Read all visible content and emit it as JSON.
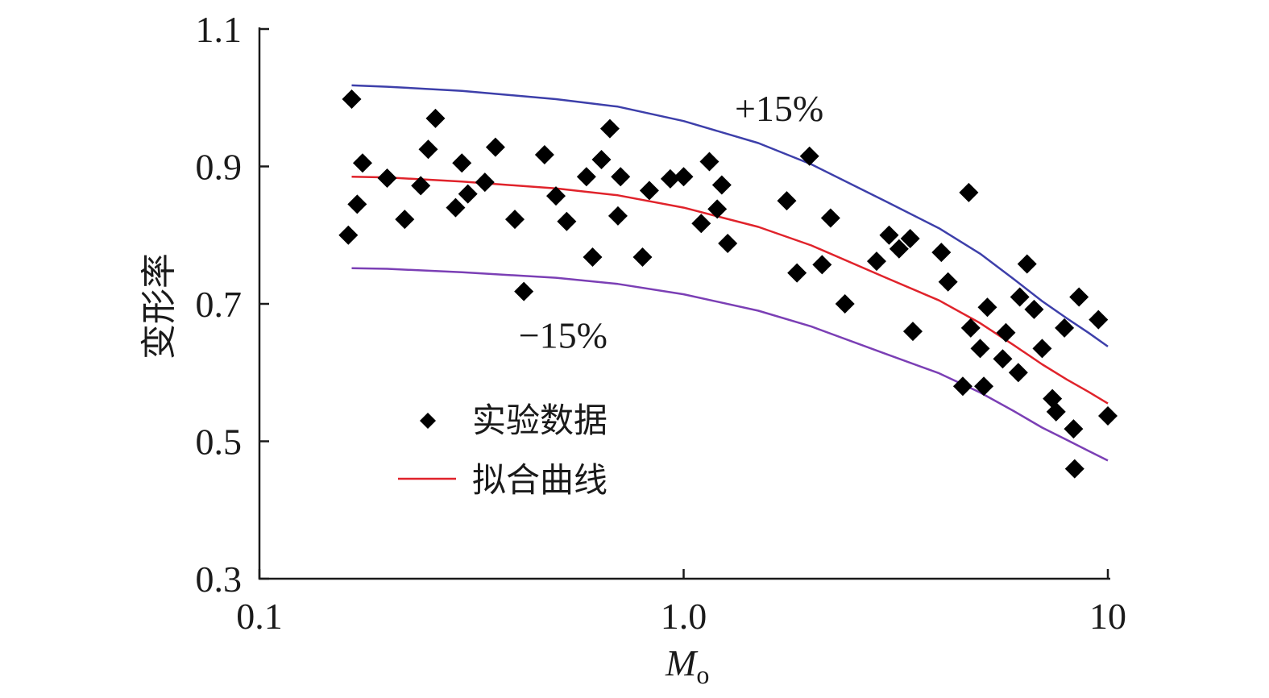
{
  "chart_data": {
    "type": "scatter",
    "xlabel": "M",
    "xlabel_sub": "o",
    "ylabel": "变形率",
    "x_scale": "log",
    "xlim": [
      0.1,
      10
    ],
    "ylim": [
      0.3,
      1.1
    ],
    "x_ticks": [
      0.1,
      1.0,
      10
    ],
    "x_tick_labels": [
      "0.1",
      "1.0",
      "10"
    ],
    "y_ticks": [
      0.3,
      0.5,
      0.7,
      0.9,
      1.1
    ],
    "y_tick_labels": [
      "0.3",
      "0.5",
      "0.7",
      "0.9",
      "1.1"
    ],
    "grid": false,
    "legend_position": "lower-left",
    "annotations": [
      {
        "text": "+15%",
        "x": 2.0,
        "y": 0.985
      },
      {
        "text": "−15%",
        "x": 0.6,
        "y": 0.655
      }
    ],
    "series": [
      {
        "name": "实验数据",
        "kind": "scatter",
        "marker": "diamond",
        "color": "#000000",
        "points": [
          [
            0.162,
            0.8
          ],
          [
            0.165,
            0.998
          ],
          [
            0.17,
            0.845
          ],
          [
            0.175,
            0.905
          ],
          [
            0.2,
            0.883
          ],
          [
            0.22,
            0.823
          ],
          [
            0.24,
            0.872
          ],
          [
            0.25,
            0.925
          ],
          [
            0.26,
            0.97
          ],
          [
            0.29,
            0.84
          ],
          [
            0.3,
            0.905
          ],
          [
            0.31,
            0.86
          ],
          [
            0.34,
            0.877
          ],
          [
            0.36,
            0.928
          ],
          [
            0.4,
            0.823
          ],
          [
            0.42,
            0.718
          ],
          [
            0.47,
            0.917
          ],
          [
            0.5,
            0.857
          ],
          [
            0.53,
            0.82
          ],
          [
            0.59,
            0.885
          ],
          [
            0.61,
            0.768
          ],
          [
            0.64,
            0.91
          ],
          [
            0.67,
            0.955
          ],
          [
            0.7,
            0.828
          ],
          [
            0.71,
            0.885
          ],
          [
            0.8,
            0.768
          ],
          [
            0.83,
            0.865
          ],
          [
            0.93,
            0.882
          ],
          [
            1.0,
            0.885
          ],
          [
            1.1,
            0.817
          ],
          [
            1.15,
            0.907
          ],
          [
            1.2,
            0.838
          ],
          [
            1.23,
            0.873
          ],
          [
            1.27,
            0.788
          ],
          [
            1.75,
            0.85
          ],
          [
            1.85,
            0.745
          ],
          [
            1.98,
            0.915
          ],
          [
            2.12,
            0.757
          ],
          [
            2.22,
            0.825
          ],
          [
            2.4,
            0.7
          ],
          [
            2.85,
            0.762
          ],
          [
            3.05,
            0.8
          ],
          [
            3.22,
            0.78
          ],
          [
            3.42,
            0.795
          ],
          [
            3.47,
            0.66
          ],
          [
            4.05,
            0.775
          ],
          [
            4.2,
            0.732
          ],
          [
            4.55,
            0.58
          ],
          [
            4.7,
            0.862
          ],
          [
            4.75,
            0.665
          ],
          [
            5.0,
            0.635
          ],
          [
            5.1,
            0.58
          ],
          [
            5.2,
            0.695
          ],
          [
            5.65,
            0.62
          ],
          [
            5.75,
            0.658
          ],
          [
            6.15,
            0.6
          ],
          [
            6.2,
            0.71
          ],
          [
            6.45,
            0.758
          ],
          [
            6.7,
            0.692
          ],
          [
            7.0,
            0.635
          ],
          [
            7.4,
            0.562
          ],
          [
            7.55,
            0.543
          ],
          [
            7.9,
            0.665
          ],
          [
            8.3,
            0.518
          ],
          [
            8.35,
            0.46
          ],
          [
            8.55,
            0.71
          ],
          [
            9.5,
            0.677
          ],
          [
            10.0,
            0.537
          ]
        ]
      },
      {
        "name": "拟合曲线",
        "kind": "line",
        "color": "#e0232b",
        "points": [
          [
            0.165,
            0.885
          ],
          [
            0.2,
            0.884
          ],
          [
            0.3,
            0.878
          ],
          [
            0.5,
            0.868
          ],
          [
            0.7,
            0.858
          ],
          [
            1.0,
            0.84
          ],
          [
            1.5,
            0.812
          ],
          [
            2.0,
            0.785
          ],
          [
            3.0,
            0.738
          ],
          [
            4.0,
            0.705
          ],
          [
            5.0,
            0.672
          ],
          [
            6.0,
            0.64
          ],
          [
            7.0,
            0.612
          ],
          [
            8.0,
            0.59
          ],
          [
            9.0,
            0.572
          ],
          [
            10.0,
            0.555
          ]
        ]
      },
      {
        "kind": "line",
        "color": "#3d3faa",
        "points": [
          [
            0.165,
            1.018
          ],
          [
            0.2,
            1.016
          ],
          [
            0.3,
            1.01
          ],
          [
            0.5,
            0.998
          ],
          [
            0.7,
            0.987
          ],
          [
            1.0,
            0.966
          ],
          [
            1.5,
            0.934
          ],
          [
            2.0,
            0.903
          ],
          [
            3.0,
            0.849
          ],
          [
            4.0,
            0.81
          ],
          [
            5.0,
            0.773
          ],
          [
            6.0,
            0.736
          ],
          [
            7.0,
            0.704
          ],
          [
            8.0,
            0.679
          ],
          [
            9.0,
            0.658
          ],
          [
            10.0,
            0.638
          ]
        ]
      },
      {
        "kind": "line",
        "color": "#7b3fb5",
        "points": [
          [
            0.165,
            0.752
          ],
          [
            0.2,
            0.751
          ],
          [
            0.3,
            0.746
          ],
          [
            0.5,
            0.738
          ],
          [
            0.7,
            0.729
          ],
          [
            1.0,
            0.714
          ],
          [
            1.5,
            0.69
          ],
          [
            2.0,
            0.667
          ],
          [
            3.0,
            0.627
          ],
          [
            4.0,
            0.599
          ],
          [
            5.0,
            0.571
          ],
          [
            6.0,
            0.544
          ],
          [
            7.0,
            0.52
          ],
          [
            8.0,
            0.502
          ],
          [
            9.0,
            0.486
          ],
          [
            10.0,
            0.472
          ]
        ]
      }
    ]
  }
}
